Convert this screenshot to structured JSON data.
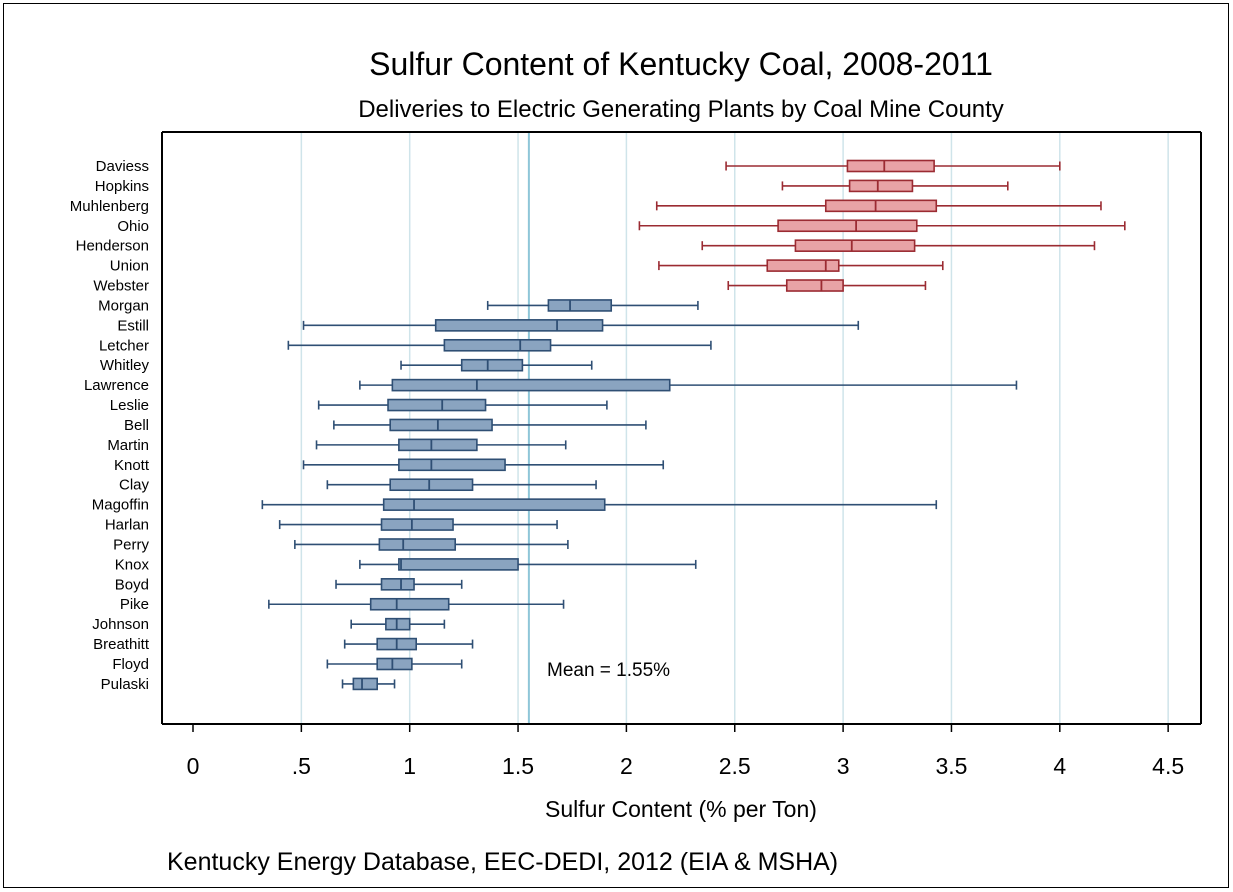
{
  "chart_data": {
    "type": "boxplot",
    "title": "Sulfur Content of Kentucky Coal, 2008-2011",
    "subtitle": "Deliveries to Electric Generating Plants by Coal Mine County",
    "xlabel": "Sulfur Content (% per Ton)",
    "note": "Kentucky Energy Database, EEC-DEDI, 2012  (EIA & MSHA)",
    "annotation": "Mean = 1.55%",
    "mean": 1.55,
    "xlim": [
      -0.15,
      4.63
    ],
    "xticks": [
      0,
      0.5,
      1,
      1.5,
      2,
      2.5,
      3,
      3.5,
      4,
      4.5
    ],
    "xtick_labels": [
      "0",
      ".5",
      "1",
      "1.5",
      "2",
      "2.5",
      "3",
      "3.5",
      "4",
      "4.5"
    ],
    "grid": true,
    "colors": {
      "high_fill": "#e8a3a6",
      "high_line": "#9b2b32",
      "low_fill": "#8aa4c0",
      "low_line": "#2f4f74",
      "grid": "#cfe4ea",
      "mean_line": "#8ec6d8"
    },
    "boxes": [
      {
        "name": "Daviess",
        "min": 2.46,
        "q1": 3.02,
        "median": 3.19,
        "q3": 3.42,
        "max": 4.0,
        "group": "high"
      },
      {
        "name": "Hopkins",
        "min": 2.72,
        "q1": 3.03,
        "median": 3.16,
        "q3": 3.32,
        "max": 3.76,
        "group": "high"
      },
      {
        "name": "Muhlenberg",
        "min": 2.14,
        "q1": 2.92,
        "median": 3.15,
        "q3": 3.43,
        "max": 4.19,
        "group": "high"
      },
      {
        "name": "Ohio",
        "min": 2.06,
        "q1": 2.7,
        "median": 3.06,
        "q3": 3.34,
        "max": 4.3,
        "group": "high"
      },
      {
        "name": "Henderson",
        "min": 2.35,
        "q1": 2.78,
        "median": 3.04,
        "q3": 3.33,
        "max": 4.16,
        "group": "high"
      },
      {
        "name": "Union",
        "min": 2.15,
        "q1": 2.65,
        "median": 2.92,
        "q3": 2.98,
        "max": 3.46,
        "group": "high"
      },
      {
        "name": "Webster",
        "min": 2.47,
        "q1": 2.74,
        "median": 2.9,
        "q3": 3.0,
        "max": 3.38,
        "group": "high"
      },
      {
        "name": "Morgan",
        "min": 1.36,
        "q1": 1.64,
        "median": 1.74,
        "q3": 1.93,
        "max": 2.33,
        "group": "low"
      },
      {
        "name": "Estill",
        "min": 0.51,
        "q1": 1.12,
        "median": 1.68,
        "q3": 1.89,
        "max": 3.07,
        "group": "low"
      },
      {
        "name": "Letcher",
        "min": 0.44,
        "q1": 1.16,
        "median": 1.51,
        "q3": 1.65,
        "max": 2.39,
        "group": "low"
      },
      {
        "name": "Whitley",
        "min": 0.96,
        "q1": 1.24,
        "median": 1.36,
        "q3": 1.52,
        "max": 1.84,
        "group": "low"
      },
      {
        "name": "Lawrence",
        "min": 0.77,
        "q1": 0.92,
        "median": 1.31,
        "q3": 2.2,
        "max": 3.8,
        "group": "low"
      },
      {
        "name": "Leslie",
        "min": 0.58,
        "q1": 0.9,
        "median": 1.15,
        "q3": 1.35,
        "max": 1.91,
        "group": "low"
      },
      {
        "name": "Bell",
        "min": 0.65,
        "q1": 0.91,
        "median": 1.13,
        "q3": 1.38,
        "max": 2.09,
        "group": "low"
      },
      {
        "name": "Martin",
        "min": 0.57,
        "q1": 0.95,
        "median": 1.1,
        "q3": 1.31,
        "max": 1.72,
        "group": "low"
      },
      {
        "name": "Knott",
        "min": 0.51,
        "q1": 0.95,
        "median": 1.1,
        "q3": 1.44,
        "max": 2.17,
        "group": "low"
      },
      {
        "name": "Clay",
        "min": 0.62,
        "q1": 0.91,
        "median": 1.09,
        "q3": 1.29,
        "max": 1.86,
        "group": "low"
      },
      {
        "name": "Magoffin",
        "min": 0.32,
        "q1": 0.88,
        "median": 1.02,
        "q3": 1.9,
        "max": 3.43,
        "group": "low"
      },
      {
        "name": "Harlan",
        "min": 0.4,
        "q1": 0.87,
        "median": 1.01,
        "q3": 1.2,
        "max": 1.68,
        "group": "low"
      },
      {
        "name": "Perry",
        "min": 0.47,
        "q1": 0.86,
        "median": 0.97,
        "q3": 1.21,
        "max": 1.73,
        "group": "low"
      },
      {
        "name": "Knox",
        "min": 0.77,
        "q1": 0.95,
        "median": 0.96,
        "q3": 1.5,
        "max": 2.32,
        "group": "low"
      },
      {
        "name": "Boyd",
        "min": 0.66,
        "q1": 0.87,
        "median": 0.96,
        "q3": 1.02,
        "max": 1.24,
        "group": "low"
      },
      {
        "name": "Pike",
        "min": 0.35,
        "q1": 0.82,
        "median": 0.94,
        "q3": 1.18,
        "max": 1.71,
        "group": "low"
      },
      {
        "name": "Johnson",
        "min": 0.73,
        "q1": 0.89,
        "median": 0.94,
        "q3": 1.0,
        "max": 1.16,
        "group": "low"
      },
      {
        "name": "Breathitt",
        "min": 0.7,
        "q1": 0.85,
        "median": 0.94,
        "q3": 1.03,
        "max": 1.29,
        "group": "low"
      },
      {
        "name": "Floyd",
        "min": 0.62,
        "q1": 0.85,
        "median": 0.92,
        "q3": 1.01,
        "max": 1.24,
        "group": "low"
      },
      {
        "name": "Pulaski",
        "min": 0.69,
        "q1": 0.74,
        "median": 0.78,
        "q3": 0.85,
        "max": 0.93,
        "group": "low"
      }
    ]
  }
}
